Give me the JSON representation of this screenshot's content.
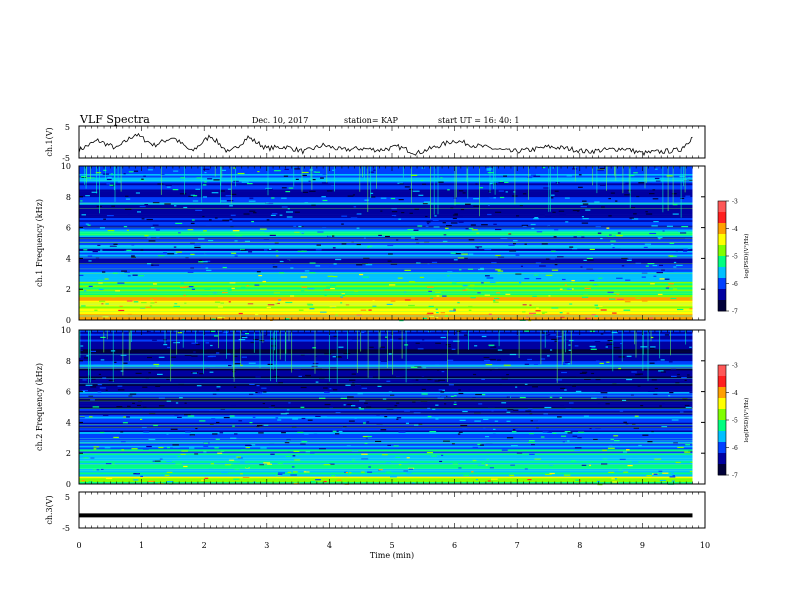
{
  "header": {
    "title": "VLF Spectra",
    "date": "Dec. 10, 2017",
    "station": "station= KAP",
    "start": "start  UT =   16: 40: 1"
  },
  "colorbar": {
    "label": "log(PSD)(V²/Hz)",
    "ticks": [
      "-3",
      "-4",
      "-5",
      "-6",
      "-7"
    ],
    "colors": [
      "#ff5858",
      "#ff2020",
      "#ffa000",
      "#ffff00",
      "#80ff00",
      "#00ff80",
      "#00c0ff",
      "#0040ff",
      "#0000a0",
      "#00003a"
    ]
  },
  "chart_data": [
    {
      "type": "line",
      "panel": "ch1-waveform",
      "ylabel": "ch.1(V)",
      "ylim": [
        -5,
        5
      ],
      "yticks": [
        "5",
        "-5"
      ],
      "xlabel": "",
      "xlim": [
        0,
        10
      ],
      "x": [
        0.0,
        0.3,
        0.6,
        0.9,
        1.2,
        1.5,
        1.8,
        2.1,
        2.4,
        2.7,
        3.0,
        3.3,
        3.6,
        3.9,
        4.2,
        4.5,
        4.8,
        5.1,
        5.4,
        5.7,
        6.0,
        6.3,
        6.6,
        6.9,
        7.2,
        7.5,
        7.8,
        8.1,
        8.4,
        8.7,
        9.0,
        9.3,
        9.6,
        9.8
      ],
      "y": [
        -2.5,
        0.5,
        -2.0,
        2.5,
        -1.0,
        1.5,
        -3.0,
        2.0,
        -3.5,
        1.5,
        -2.0,
        -1.5,
        -3.0,
        -1.0,
        -2.5,
        -2.0,
        -2.5,
        -1.5,
        -3.5,
        -1.5,
        0.5,
        -1.0,
        -2.0,
        -3.0,
        -2.5,
        -1.5,
        -2.0,
        -3.0,
        -2.5,
        -2.0,
        -3.5,
        -3.0,
        -2.5,
        1.5
      ]
    },
    {
      "type": "heatmap",
      "panel": "ch1-spectrogram",
      "ylabel": "ch.1 Frequency (kHz)",
      "ylim": [
        0,
        10
      ],
      "yticks": [
        "0",
        "2",
        "4",
        "6",
        "8",
        "10"
      ],
      "xlim": [
        0,
        10
      ],
      "band_y": [
        0,
        0.5,
        1.0,
        1.5,
        2.0,
        2.5,
        3.0,
        3.5,
        4.0,
        4.5,
        5.0,
        5.5,
        6.0,
        6.5,
        7.0,
        7.5,
        8.0,
        8.5,
        9.0,
        9.5
      ],
      "band_value": [
        -4.2,
        -4.6,
        -4.4,
        -4.9,
        -5.0,
        -5.4,
        -5.9,
        -6.2,
        -5.8,
        -6.0,
        -6.1,
        -5.5,
        -6.3,
        -6.4,
        -6.5,
        -6.1,
        -6.4,
        -6.2,
        -6.0,
        -5.7
      ]
    },
    {
      "type": "heatmap",
      "panel": "ch2-spectrogram",
      "ylabel": "ch.2 Frequency (kHz)",
      "ylim": [
        0,
        10
      ],
      "yticks": [
        "0",
        "2",
        "4",
        "6",
        "8",
        "10"
      ],
      "xlim": [
        0,
        10
      ],
      "band_y": [
        0,
        0.5,
        1.0,
        1.5,
        2.0,
        2.5,
        3.0,
        3.5,
        4.0,
        4.5,
        5.0,
        5.5,
        6.0,
        6.5,
        7.0,
        7.5,
        8.0,
        8.5,
        9.0,
        9.5
      ],
      "band_value": [
        -4.8,
        -5.2,
        -5.4,
        -5.6,
        -5.6,
        -5.9,
        -6.0,
        -6.2,
        -6.0,
        -6.4,
        -6.3,
        -6.1,
        -6.5,
        -6.7,
        -6.6,
        -5.8,
        -6.5,
        -6.4,
        -6.3,
        -6.0
      ]
    },
    {
      "type": "line",
      "panel": "ch3-waveform",
      "ylabel": "ch.3(V)",
      "ylim": [
        -5,
        5
      ],
      "yticks": [
        "5",
        "-5"
      ],
      "xlabel": "Time  (min)",
      "xlim": [
        0,
        10
      ],
      "xticks": [
        "0",
        "1",
        "2",
        "3",
        "4",
        "5",
        "6",
        "7",
        "8",
        "9",
        "10"
      ],
      "x": [
        0.0,
        9.8
      ],
      "y": [
        -1.5,
        -1.5
      ]
    }
  ]
}
